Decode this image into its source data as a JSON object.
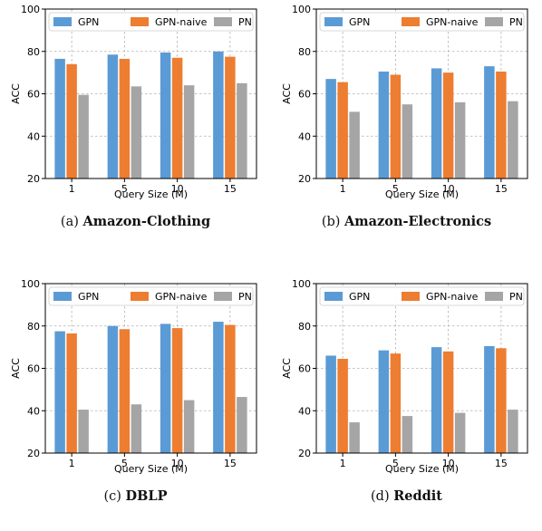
{
  "chart_data": [
    {
      "type": "bar",
      "categories": [
        "1",
        "5",
        "10",
        "15"
      ],
      "series": [
        {
          "name": "GPN",
          "values": [
            76.5,
            78.5,
            79.5,
            80.0
          ]
        },
        {
          "name": "GPN-naive",
          "values": [
            74.0,
            76.5,
            77.0,
            77.5
          ]
        },
        {
          "name": "PN",
          "values": [
            59.5,
            63.5,
            64.0,
            65.0
          ]
        }
      ],
      "xlabel": "Query Size (M)",
      "ylabel": "ACC",
      "ylim": [
        20,
        100
      ],
      "yticks": [
        "20",
        "40",
        "60",
        "80",
        "100"
      ],
      "grid": true,
      "legend": "top",
      "caption_prefix": "(a)",
      "caption_title": "Amazon-Clothing"
    },
    {
      "type": "bar",
      "categories": [
        "1",
        "5",
        "10",
        "15"
      ],
      "series": [
        {
          "name": "GPN",
          "values": [
            67.0,
            70.5,
            72.0,
            73.0
          ]
        },
        {
          "name": "GPN-naive",
          "values": [
            65.5,
            69.0,
            70.0,
            70.5
          ]
        },
        {
          "name": "PN",
          "values": [
            51.5,
            55.0,
            56.0,
            56.5
          ]
        }
      ],
      "xlabel": "Query Size (M)",
      "ylabel": "ACC",
      "ylim": [
        20,
        100
      ],
      "yticks": [
        "20",
        "40",
        "60",
        "80",
        "100"
      ],
      "grid": true,
      "legend": "top",
      "caption_prefix": "(b)",
      "caption_title": "Amazon-Electronics"
    },
    {
      "type": "bar",
      "categories": [
        "1",
        "5",
        "10",
        "15"
      ],
      "series": [
        {
          "name": "GPN",
          "values": [
            77.5,
            80.0,
            81.0,
            82.0
          ]
        },
        {
          "name": "GPN-naive",
          "values": [
            76.5,
            78.5,
            79.0,
            80.5
          ]
        },
        {
          "name": "PN",
          "values": [
            40.5,
            43.0,
            45.0,
            46.5
          ]
        }
      ],
      "xlabel": "Query Size (M)",
      "ylabel": "ACC",
      "ylim": [
        20,
        100
      ],
      "yticks": [
        "20",
        "40",
        "60",
        "80",
        "100"
      ],
      "grid": true,
      "legend": "top",
      "caption_prefix": "(c)",
      "caption_title": "DBLP"
    },
    {
      "type": "bar",
      "categories": [
        "1",
        "5",
        "10",
        "15"
      ],
      "series": [
        {
          "name": "GPN",
          "values": [
            66.0,
            68.5,
            70.0,
            70.5
          ]
        },
        {
          "name": "GPN-naive",
          "values": [
            64.5,
            67.0,
            68.0,
            69.5
          ]
        },
        {
          "name": "PN",
          "values": [
            34.5,
            37.5,
            39.0,
            40.5
          ]
        }
      ],
      "xlabel": "Query Size (M)",
      "ylabel": "ACC",
      "ylim": [
        20,
        100
      ],
      "yticks": [
        "20",
        "40",
        "60",
        "80",
        "100"
      ],
      "grid": true,
      "legend": "top",
      "caption_prefix": "(d)",
      "caption_title": "Reddit"
    }
  ],
  "colors": {
    "GPN": "#5b9bd5",
    "GPN-naive": "#ed7d31",
    "PN": "#a5a5a5"
  }
}
